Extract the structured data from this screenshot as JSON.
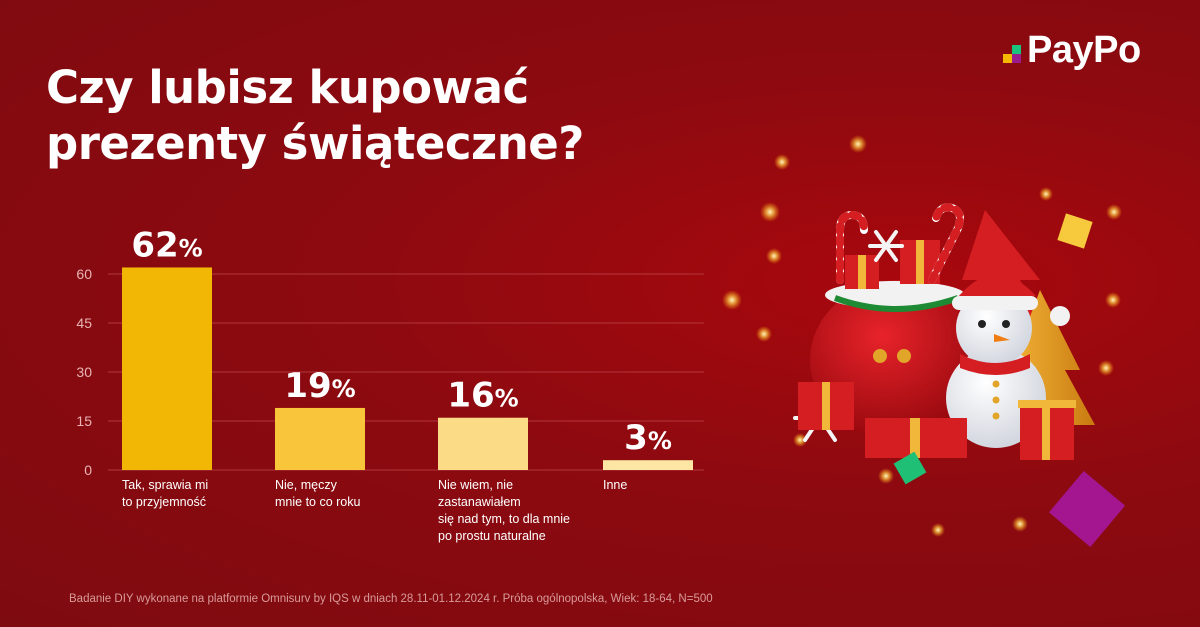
{
  "brand": {
    "name": "PayPo",
    "colors": [
      "#f5b800",
      "#19c37d",
      "#9b1b8f"
    ]
  },
  "title_lines": [
    "Czy lubisz kupować",
    "prezenty świąteczne?"
  ],
  "footnote": "Badanie DIY wykonane na platformie Omnisurv by IQS w dniach 28.11-01.12.2024 r. Próba ogólnopolska, Wiek: 18-64, N=500",
  "chart_data": {
    "type": "bar",
    "categories": [
      [
        "Tak, sprawia mi",
        "to przyjemność"
      ],
      [
        "Nie, męczy",
        "mnie to co roku"
      ],
      [
        "Nie wiem, nie",
        "zastanawiałem",
        "się nad tym, to dla mnie",
        "po prostu naturalne"
      ],
      [
        "Inne"
      ]
    ],
    "values": [
      62,
      19,
      16,
      3
    ],
    "value_labels": [
      "62",
      "19",
      "16",
      "3"
    ],
    "value_suffix": "%",
    "yticks": [
      "0",
      "15",
      "30",
      "45",
      "60"
    ],
    "ylim": [
      0,
      75
    ],
    "grid": true,
    "bar_colors": [
      "#f2b705",
      "#f9c53a",
      "#fcdb86",
      "#fde6a4"
    ]
  },
  "illustration": {
    "description_icons": [
      "santa-sack-icon",
      "snowman-icon",
      "gift-box-icon",
      "christmas-tree-icon",
      "candy-cane-icon",
      "snowflake-icon"
    ]
  }
}
